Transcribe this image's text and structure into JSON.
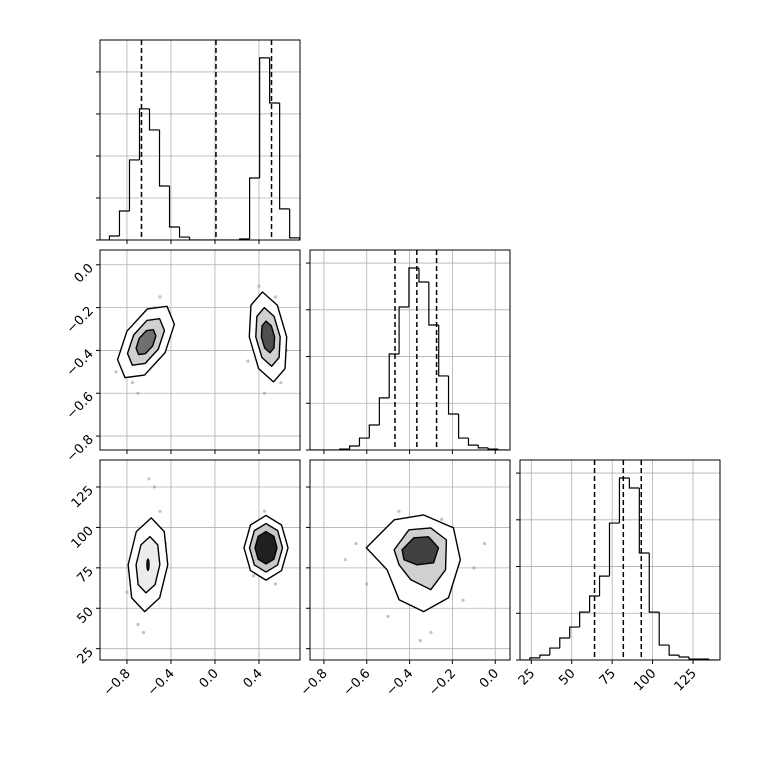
{
  "chart_data": {
    "type": "corner",
    "grid": true,
    "params": [
      {
        "lim": [
          -1.045,
          0.773
        ],
        "ticks": [
          {
            "value": -0.8,
            "label": "−0.8"
          },
          {
            "value": -0.4,
            "label": "−0.4"
          },
          {
            "value": 0,
            "label": "0.0"
          },
          {
            "value": 0.4,
            "label": "0.4"
          }
        ]
      },
      {
        "lim": [
          -0.865,
          0.069
        ],
        "ticks": [
          {
            "value": -0.8,
            "label": "−0.8"
          },
          {
            "value": -0.6,
            "label": "−0.6"
          },
          {
            "value": -0.4,
            "label": "−0.4"
          },
          {
            "value": -0.2,
            "label": "−0.2"
          },
          {
            "value": 0,
            "label": "0.0"
          }
        ]
      },
      {
        "lim": [
          18,
          141.7
        ],
        "ticks": [
          25,
          50,
          75,
          100,
          125
        ]
      }
    ],
    "histograms": [
      {
        "color": "#000000",
        "ylim": [
          0,
          952
        ],
        "yticks": [
          0,
          200,
          400,
          600,
          800
        ],
        "bins": [
          -1.05,
          -0.959,
          -0.868,
          -0.777,
          -0.686,
          -0.595,
          -0.504,
          -0.413,
          -0.322,
          -0.231,
          -0.14,
          -0.049,
          0.042,
          0.133,
          0.224,
          0.315,
          0.406,
          0.497,
          0.588,
          0.679,
          0.77
        ],
        "counts": [
          0,
          19,
          138,
          381,
          624,
          524,
          257,
          62,
          14,
          0,
          0,
          0,
          0,
          0,
          5,
          295,
          867,
          652,
          148,
          10
        ],
        "quantiles": [
          -0.668,
          0.009,
          0.514
        ]
      },
      {
        "color": "#000000",
        "ylim": [
          0,
          856
        ],
        "yticks": [
          0,
          200,
          400,
          600,
          800
        ],
        "bins": [
          -0.865,
          -0.819,
          -0.772,
          -0.726,
          -0.68,
          -0.634,
          -0.588,
          -0.541,
          -0.495,
          -0.449,
          -0.403,
          -0.356,
          -0.31,
          -0.264,
          -0.218,
          -0.171,
          -0.125,
          -0.079,
          -0.033,
          0.014,
          0.06
        ],
        "counts": [
          0,
          0,
          0,
          4,
          17,
          51,
          107,
          223,
          411,
          612,
          779,
          719,
          535,
          317,
          154,
          51,
          21,
          9,
          4,
          0
        ],
        "quantiles": [
          -0.468,
          -0.366,
          -0.274
        ]
      },
      {
        "color": "#000000",
        "ylim": [
          0,
          856
        ],
        "yticks": [
          0,
          200,
          400,
          600,
          800
        ],
        "bins": [
          18,
          24.15,
          30.3,
          36.45,
          42.6,
          48.75,
          54.9,
          61.05,
          67.2,
          73.35,
          79.5,
          85.65,
          91.8,
          97.95,
          104.1,
          110.25,
          116.4,
          122.55,
          128.7,
          134.85,
          141
        ],
        "counts": [
          0,
          9,
          21,
          51,
          94,
          141,
          205,
          274,
          359,
          586,
          779,
          736,
          458,
          205,
          64,
          21,
          13,
          4,
          4,
          0
        ],
        "quantiles": [
          64.1,
          81.9,
          93.0
        ]
      }
    ],
    "pairs": [
      {
        "points": {
          "color": "#9a9a9a",
          "x": [
            -0.75,
            -0.85,
            -0.55,
            -0.45,
            -0.7,
            -0.9,
            -0.5,
            0.35,
            0.6,
            0.65,
            0.3,
            0.45,
            0.55,
            0.4
          ],
          "y": [
            -0.55,
            -0.4,
            -0.2,
            -0.3,
            -0.6,
            -0.5,
            -0.15,
            -0.2,
            -0.55,
            -0.4,
            -0.45,
            -0.6,
            -0.15,
            -0.1
          ]
        },
        "contours": [
          {
            "fill": "#ffffff",
            "x": [
              -0.436,
              -0.369,
              -0.454,
              -0.64,
              -0.818,
              -0.885,
              -0.8,
              -0.614
            ],
            "y": [
              -0.194,
              -0.278,
              -0.411,
              -0.515,
              -0.527,
              -0.443,
              -0.31,
              -0.206
            ]
          },
          {
            "fill": "#d0d0d0",
            "x": [
              -0.503,
              -0.459,
              -0.515,
              -0.635,
              -0.751,
              -0.795,
              -0.739,
              -0.619
            ],
            "y": [
              -0.252,
              -0.307,
              -0.394,
              -0.461,
              -0.469,
              -0.414,
              -0.328,
              -0.26
            ]
          },
          {
            "fill": "#707070",
            "x": [
              -0.56,
              -0.537,
              -0.566,
              -0.632,
              -0.694,
              -0.717,
              -0.688,
              -0.622
            ],
            "y": [
              -0.303,
              -0.332,
              -0.379,
              -0.415,
              -0.419,
              -0.39,
              -0.343,
              -0.307
            ]
          },
          {
            "fill": "#ffffff",
            "x": [
              0.652,
              0.567,
              0.432,
              0.327,
              0.312,
              0.397,
              0.532,
              0.637
            ],
            "y": [
              -0.337,
              -0.189,
              -0.127,
              -0.189,
              -0.337,
              -0.485,
              -0.547,
              -0.485
            ]
          },
          {
            "fill": "#d0d0d0",
            "x": [
              0.593,
              0.537,
              0.449,
              0.381,
              0.371,
              0.427,
              0.515,
              0.583
            ],
            "y": [
              -0.337,
              -0.241,
              -0.2,
              -0.241,
              -0.337,
              -0.433,
              -0.474,
              -0.433
            ]
          },
          {
            "fill": "#505050",
            "x": [
              0.542,
              0.512,
              0.464,
              0.428,
              0.422,
              0.452,
              0.5,
              0.536
            ],
            "y": [
              -0.337,
              -0.285,
              -0.263,
              -0.285,
              -0.337,
              -0.389,
              -0.411,
              -0.389
            ]
          }
        ]
      },
      {
        "points": {
          "color": "#9a9a9a",
          "x": [
            -0.7,
            -0.5,
            -0.55,
            -0.8,
            -0.45,
            -0.65,
            -0.6,
            0.35,
            0.6,
            0.45,
            0.55,
            0.3
          ],
          "y": [
            40,
            110,
            125,
            60,
            90,
            35,
            130,
            70,
            100,
            110,
            65,
            90
          ]
        },
        "contours": [
          {
            "fill": "#ffffff",
            "x": [
              -0.429,
              -0.461,
              -0.579,
              -0.715,
              -0.789,
              -0.757,
              -0.639,
              -0.503
            ],
            "y": [
              76.9,
              97.4,
              105.9,
              97.4,
              76.9,
              56.4,
              47.9,
              56.4
            ]
          },
          {
            "fill": "#ececec",
            "x": [
              -0.501,
              -0.52,
              -0.591,
              -0.673,
              -0.717,
              -0.698,
              -0.627,
              -0.545
            ],
            "y": [
              76.9,
              89.2,
              94.3,
              89.2,
              76.9,
              64.6,
              59.5,
              64.6
            ]
          },
          {
            "fill": "#303030",
            "x": [
              -0.599,
              -0.602,
              -0.609,
              -0.616,
              -0.619,
              -0.616,
              -0.609,
              -0.602
            ],
            "y": [
              76.9,
              79.4,
              80.4,
              79.4,
              76.9,
              74.4,
              73.4,
              74.4
            ]
          },
          {
            "fill": "#ffffff",
            "x": [
              0.664,
              0.605,
              0.464,
              0.323,
              0.264,
              0.323,
              0.464,
              0.605
            ],
            "y": [
              87.4,
              101.5,
              107.4,
              101.5,
              87.4,
              73.3,
              67.4,
              73.3
            ]
          },
          {
            "fill": "#c8c8c8",
            "x": [
              0.614,
              0.57,
              0.464,
              0.358,
              0.314,
              0.358,
              0.464,
              0.57
            ],
            "y": [
              87.4,
              98,
              102.4,
              98,
              87.4,
              76.8,
              72.4,
              76.8
            ]
          },
          {
            "fill": "#202020",
            "x": [
              0.564,
              0.535,
              0.464,
              0.393,
              0.364,
              0.393,
              0.464,
              0.535
            ],
            "y": [
              87.4,
              94.5,
              97.4,
              94.5,
              87.4,
              80.3,
              77.4,
              80.3
            ]
          }
        ]
      },
      {
        "points": {
          "color": "#9a9a9a",
          "x": [
            -0.65,
            -0.2,
            -0.1,
            -0.5,
            -0.3,
            -0.6,
            -0.15,
            -0.45,
            -0.25,
            -0.05,
            -0.7,
            -0.35
          ],
          "y": [
            90,
            100,
            75,
            45,
            35,
            65,
            55,
            110,
            105,
            90,
            80,
            30
          ]
        },
        "contours": [
          {
            "fill": "#ffffff",
            "x": [
              -0.602,
              -0.472,
              -0.334,
              -0.195,
              -0.163,
              -0.218,
              -0.334,
              -0.449,
              -0.505
            ],
            "y": [
              87.4,
              104.7,
              107.7,
              99.7,
              80.0,
              56.5,
              47.9,
              55.3,
              73.8
            ]
          },
          {
            "fill": "#d0d0d0",
            "x": [
              -0.472,
              -0.403,
              -0.301,
              -0.228,
              -0.232,
              -0.301,
              -0.394,
              -0.449
            ],
            "y": [
              86.1,
              98.5,
              99.7,
              92.3,
              73.8,
              61.5,
              67.6,
              76.9
            ]
          },
          {
            "fill": "#404040",
            "x": [
              -0.435,
              -0.38,
              -0.311,
              -0.265,
              -0.288,
              -0.366,
              -0.426
            ],
            "y": [
              86.1,
              93.6,
              94.2,
              87.4,
              78.1,
              76.9,
              80.0
            ]
          }
        ]
      }
    ]
  }
}
